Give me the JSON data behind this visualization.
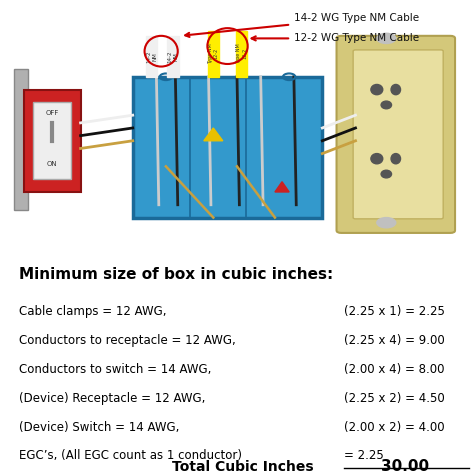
{
  "title": "Minimum size of box in cubic inches:",
  "labels_left": [
    "Cable clamps = 12 AWG,",
    "Conductors to receptacle = 12 AWG,",
    "Conductors to switch = 14 AWG,",
    "(Device) Receptacle = 12 AWG,",
    "(Device) Switch = 14 AWG,",
    "EGC’s, (All EGC count as 1 conductor)"
  ],
  "labels_right": [
    "(2.25 x 1) = 2.25",
    "(2.25 x 4) = 9.00",
    "(2.00 x 4) = 8.00",
    "(2.25 x 2) = 4.50",
    "(2.00 x 2) = 4.00",
    "= 2.25"
  ],
  "total_label": "Total Cubic Inches",
  "total_value": "30.00",
  "annotation1": "14-2 WG Type NM Cable",
  "annotation2": "12-2 WG Type NM Cable",
  "bg_color": "#ffffff",
  "text_color": "#000000",
  "title_fontsize": 11,
  "body_fontsize": 8.5,
  "total_fontsize": 10,
  "image_bg": "#4db8e8",
  "box_color": "#3399cc",
  "switch_color": "#cc2222",
  "receptacle_color": "#d4c87a",
  "wire_white": "#ffffff",
  "wire_black": "#111111",
  "wire_ground": "#c8a040",
  "cable_label_14": "#ffffff",
  "cable_label_12": "#ffff00",
  "arrow_color": "#cc0000",
  "label_arrow1_color": "#cc0000",
  "label_arrow2_color": "#cc0000"
}
